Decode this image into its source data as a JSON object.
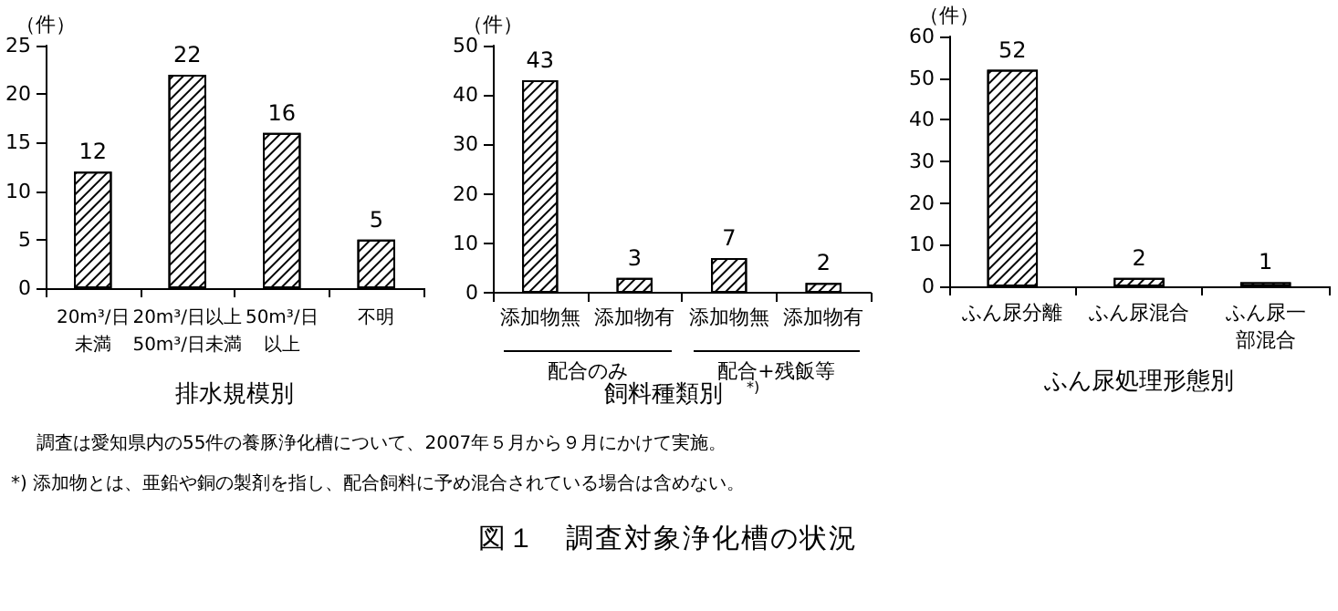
{
  "chart_data": [
    {
      "type": "bar",
      "xlabel": "排水規模別",
      "ylabel": "（件）",
      "categories": [
        "20m³/日未満",
        "20m³/日以上50m³/日未満",
        "50m³/日以上",
        "不明"
      ],
      "values": [
        12,
        22,
        16,
        5
      ],
      "color": "#000000",
      "ylim": [
        0,
        25
      ],
      "yticks": [
        0,
        5,
        10,
        15,
        20,
        25
      ],
      "data_labels": true,
      "grid": false
    },
    {
      "type": "bar",
      "xlabel": "飼料種類別　$^{*)}$",
      "ylabel": "（件）",
      "categories": [
        "添加物無",
        "添加物有",
        "添加物無",
        "添加物有"
      ],
      "values": [
        43,
        3,
        7,
        2
      ],
      "color": "#000000",
      "ylim": [
        0,
        50
      ],
      "yticks": [
        0,
        10,
        20,
        30,
        40,
        50
      ],
      "data_labels": true,
      "grid": false,
      "annotations": [
        "配合のみ",
        "配合+残飯等"
      ]
    },
    {
      "type": "bar",
      "xlabel": "ふん尿処理形態別",
      "ylabel": "（件）",
      "categories": [
        "ふん尿分離",
        "ふん尿混合",
        "ふん尿一部混合"
      ],
      "values": [
        52,
        2,
        1
      ],
      "color": "#000000",
      "ylim": [
        0,
        60
      ],
      "yticks": [
        0,
        10,
        20,
        30,
        40,
        50,
        60
      ],
      "data_labels": true,
      "grid": false
    },
    {
      "type": "other",
      "title": "図１　調査対象浄化槽の状況",
      "annotations": [
        "調査は愛知県内の55件の養豚浄化槽について、2007年５月から９月にかけて実施。",
        "*) 添加物とは、亜鉛や銅の製剤を指し、配合飼料に予め混合されている場合は含めない。"
      ]
    }
  ]
}
